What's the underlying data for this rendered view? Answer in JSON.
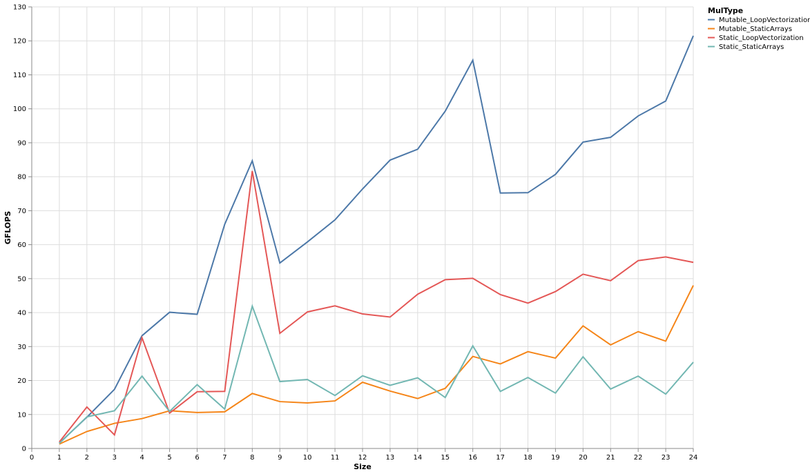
{
  "chart_data": {
    "type": "line",
    "xlabel": "Size",
    "ylabel": "GFLOPS",
    "xlim": [
      0,
      24
    ],
    "ylim": [
      0,
      130
    ],
    "x_ticks": [
      0,
      1,
      2,
      3,
      4,
      5,
      6,
      7,
      8,
      9,
      10,
      11,
      12,
      13,
      14,
      15,
      16,
      17,
      18,
      19,
      20,
      21,
      22,
      23,
      24
    ],
    "y_ticks": [
      0,
      10,
      20,
      30,
      40,
      50,
      60,
      70,
      80,
      90,
      100,
      110,
      120,
      130
    ],
    "grid": true,
    "legend": {
      "title": "MulType",
      "position": "top-right"
    },
    "x": [
      1,
      2,
      3,
      4,
      5,
      6,
      7,
      8,
      9,
      10,
      11,
      12,
      13,
      14,
      15,
      16,
      17,
      18,
      19,
      20,
      21,
      22,
      23,
      24
    ],
    "series": [
      {
        "name": "Mutable_LoopVectorization",
        "color": "#4c78a8",
        "values": [
          1.6,
          9.2,
          17.4,
          33.2,
          40.1,
          39.5,
          66.0,
          84.7,
          54.6,
          60.8,
          67.3,
          76.4,
          84.9,
          88.1,
          99.3,
          114.3,
          75.2,
          75.3,
          80.7,
          90.2,
          91.6,
          97.9,
          102.3,
          121.5
        ]
      },
      {
        "name": "Mutable_StaticArrays",
        "color": "#f58518",
        "values": [
          1.3,
          5.0,
          7.4,
          8.8,
          11.1,
          10.6,
          10.8,
          16.2,
          13.8,
          13.4,
          14.0,
          19.5,
          16.9,
          14.7,
          17.7,
          27.1,
          24.9,
          28.5,
          26.6,
          36.1,
          30.5,
          34.4,
          31.6,
          48.0
        ]
      },
      {
        "name": "Static_LoopVectorization",
        "color": "#e45756",
        "values": [
          1.9,
          12.2,
          4.0,
          32.6,
          10.4,
          16.7,
          16.8,
          81.7,
          33.9,
          40.2,
          42.0,
          39.6,
          38.7,
          45.4,
          49.7,
          50.1,
          45.3,
          42.8,
          46.2,
          51.3,
          49.4,
          55.3,
          56.4,
          54.8
        ]
      },
      {
        "name": "Static_StaticArrays",
        "color": "#72b7b2",
        "values": [
          1.5,
          9.3,
          11.1,
          21.3,
          10.9,
          18.8,
          11.6,
          41.9,
          19.7,
          20.3,
          15.6,
          21.4,
          18.6,
          20.8,
          15.0,
          30.2,
          16.8,
          20.9,
          16.3,
          27.0,
          17.5,
          21.3,
          16.0,
          25.4
        ]
      }
    ]
  }
}
